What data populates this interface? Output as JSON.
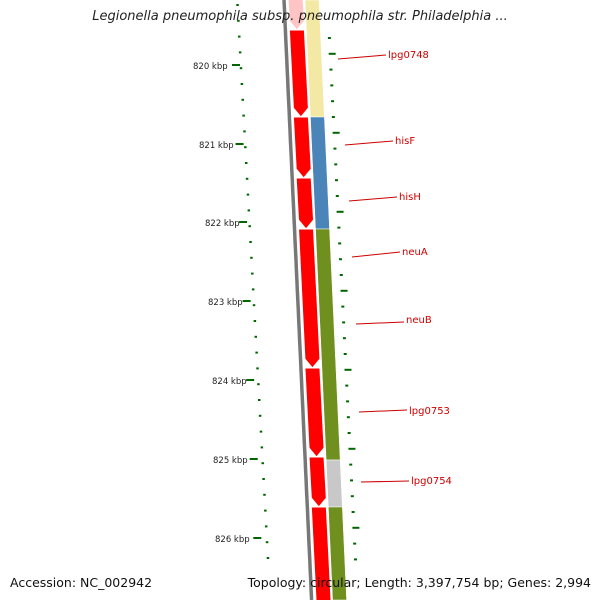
{
  "title": "Legionella pneumophila subsp. pneumophila str. Philadelphia ...",
  "footer": {
    "accession": "Accession: NC_002942",
    "summary": "Topology: circular; Length: 3,397,754 bp; Genes: 2,994"
  },
  "ticks": [
    "820 kbp",
    "821 kbp",
    "822 kbp",
    "823 kbp",
    "824 kbp",
    "825 kbp",
    "826 kbp"
  ],
  "genes": [
    "lpg0748",
    "hisF",
    "hisH",
    "neuA",
    "neuB",
    "lpg0753",
    "lpg0754"
  ],
  "colors": {
    "cds": "#ff0000",
    "backbone": "#777777",
    "tick": "#006600",
    "label": "#cc0000",
    "cog_yellow": "#f3e9a5",
    "cog_blue": "#4a84b8",
    "cog_green": "#6f8f1f",
    "cog_grey": "#c8c8c8"
  }
}
